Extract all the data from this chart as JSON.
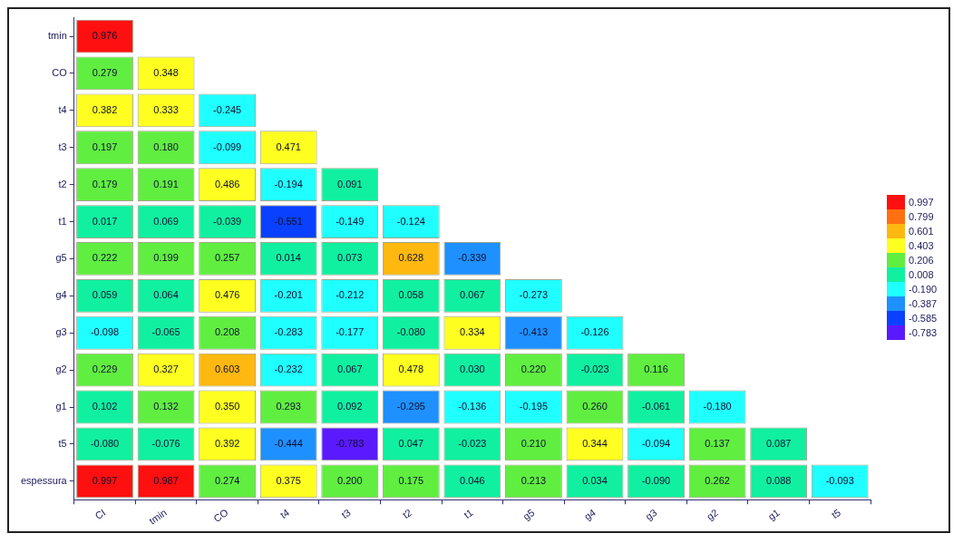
{
  "chart_data": {
    "type": "heatmap",
    "categories": [
      "CI",
      "tmin",
      "CO",
      "t4",
      "t3",
      "t2",
      "t1",
      "g5",
      "g4",
      "g3",
      "g2",
      "g1",
      "t5"
    ],
    "y_categories": [
      "tmin",
      "CO",
      "t4",
      "t3",
      "t2",
      "t1",
      "g5",
      "g4",
      "g3",
      "g2",
      "g1",
      "t5",
      "espessura"
    ],
    "cells": [
      [
        0.976,
        null,
        null,
        null,
        null,
        null,
        null,
        null,
        null,
        null,
        null,
        null,
        null
      ],
      [
        0.279,
        0.348,
        null,
        null,
        null,
        null,
        null,
        null,
        null,
        null,
        null,
        null,
        null
      ],
      [
        0.382,
        0.333,
        -0.245,
        null,
        null,
        null,
        null,
        null,
        null,
        null,
        null,
        null,
        null
      ],
      [
        0.197,
        0.18,
        -0.099,
        0.471,
        null,
        null,
        null,
        null,
        null,
        null,
        null,
        null,
        null
      ],
      [
        0.179,
        0.191,
        0.486,
        -0.194,
        0.091,
        null,
        null,
        null,
        null,
        null,
        null,
        null,
        null
      ],
      [
        0.017,
        0.069,
        -0.039,
        -0.551,
        -0.149,
        -0.124,
        null,
        null,
        null,
        null,
        null,
        null,
        null
      ],
      [
        0.222,
        0.199,
        0.257,
        0.014,
        0.073,
        0.628,
        -0.339,
        null,
        null,
        null,
        null,
        null,
        null
      ],
      [
        0.059,
        0.064,
        0.476,
        -0.201,
        -0.212,
        0.058,
        0.067,
        -0.273,
        null,
        null,
        null,
        null,
        null
      ],
      [
        -0.098,
        -0.065,
        0.208,
        -0.283,
        -0.177,
        -0.08,
        0.334,
        -0.413,
        -0.126,
        null,
        null,
        null,
        null
      ],
      [
        0.229,
        0.327,
        0.603,
        -0.232,
        0.067,
        0.478,
        0.03,
        0.22,
        -0.023,
        0.116,
        null,
        null,
        null
      ],
      [
        0.102,
        0.132,
        0.35,
        0.293,
        0.092,
        -0.295,
        -0.136,
        -0.195,
        0.26,
        -0.061,
        -0.18,
        null,
        null
      ],
      [
        -0.08,
        -0.076,
        0.392,
        -0.444,
        -0.783,
        0.047,
        -0.023,
        0.21,
        0.344,
        -0.094,
        0.137,
        0.087,
        null
      ],
      [
        0.997,
        0.987,
        0.274,
        0.375,
        0.2,
        0.175,
        0.046,
        0.213,
        0.034,
        -0.09,
        0.262,
        0.088,
        -0.093
      ]
    ],
    "cell_labels": [
      [
        "0.976",
        null,
        null,
        null,
        null,
        null,
        null,
        null,
        null,
        null,
        null,
        null,
        null
      ],
      [
        "0.279",
        "0.348",
        null,
        null,
        null,
        null,
        null,
        null,
        null,
        null,
        null,
        null,
        null
      ],
      [
        "0.382",
        "0.333",
        "-0.245",
        null,
        null,
        null,
        null,
        null,
        null,
        null,
        null,
        null,
        null
      ],
      [
        "0.197",
        "0.180",
        "-0.099",
        "0.471",
        null,
        null,
        null,
        null,
        null,
        null,
        null,
        null,
        null
      ],
      [
        "0.179",
        "0.191",
        "0.486",
        "-0.194",
        "0.091",
        null,
        null,
        null,
        null,
        null,
        null,
        null,
        null
      ],
      [
        "0.017",
        "0.069",
        "-0.039",
        "-0.551",
        "-0.149",
        "-0.124",
        null,
        null,
        null,
        null,
        null,
        null,
        null
      ],
      [
        "0.222",
        "0.199",
        "0.257",
        "0.014",
        "0.073",
        "0.628",
        "-0.339",
        null,
        null,
        null,
        null,
        null,
        null
      ],
      [
        "0.059",
        "0.064",
        "0.476",
        "-0.201",
        "-0.212",
        "0.058",
        "0.067",
        "-0.273",
        null,
        null,
        null,
        null,
        null
      ],
      [
        "-0.098",
        "-0.065",
        "0.208",
        "-0.283",
        "-0.177",
        "-0.080",
        "0.334",
        "-0.413",
        "-0.126",
        null,
        null,
        null,
        null
      ],
      [
        "0.229",
        "0.327",
        "0.603",
        "-0.232",
        "0.067",
        "0.478",
        "0.030",
        "0.220",
        "-0.023",
        "0.116",
        null,
        null,
        null
      ],
      [
        "0.102",
        "0.132",
        "0.350",
        "0.293",
        "0.092",
        "-0.295",
        "-0.136",
        "-0.195",
        "0.260",
        "-0.061",
        "-0.180",
        null,
        null
      ],
      [
        "-0.080",
        "-0.076",
        "0.392",
        "-0.444",
        "-0.783",
        "0.047",
        "-0.023",
        "0.210",
        "0.344",
        "-0.094",
        "0.137",
        "0.087",
        null
      ],
      [
        "0.997",
        "0.987",
        "0.274",
        "0.375",
        "0.200",
        "0.175",
        "0.046",
        "0.213",
        "0.034",
        "-0.090",
        "0.262",
        "0.088",
        "-0.093"
      ]
    ],
    "cticks": [
      0.997,
      0.799,
      0.601,
      0.403,
      0.206,
      0.008,
      {
        "value": -0.19,
        "label": "-0.190"
      },
      -0.387,
      -0.585,
      -0.783
    ]
  }
}
